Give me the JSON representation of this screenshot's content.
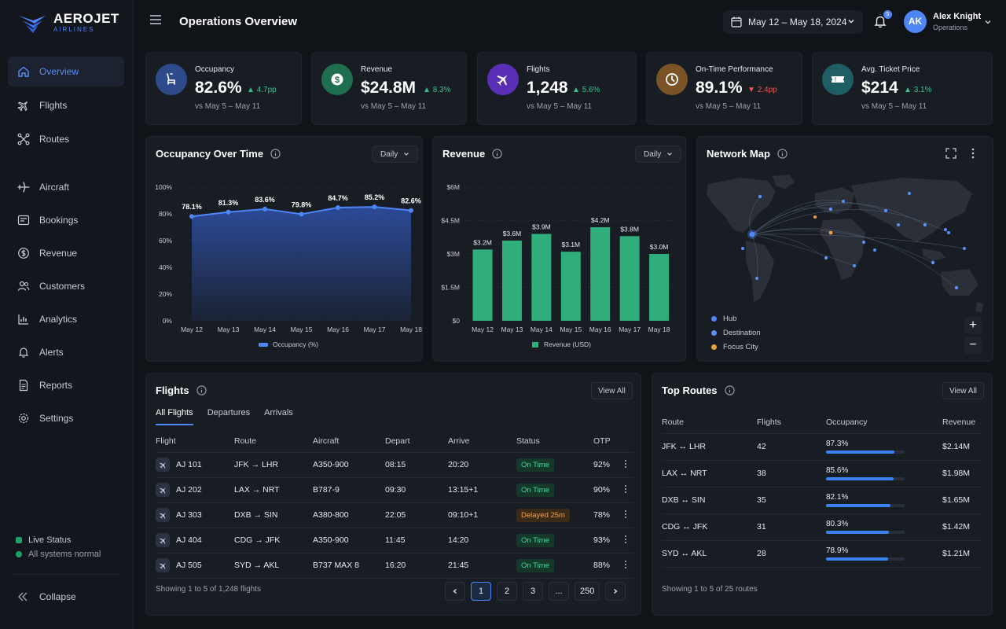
{
  "brand": {
    "name": "AEROJET",
    "sub": "AIRLINES",
    "accent": "#4f86f7"
  },
  "sidebar": {
    "items": [
      {
        "label": "Overview",
        "icon": "home-icon",
        "active": true
      },
      {
        "label": "Flights",
        "icon": "plane-icon"
      },
      {
        "label": "Routes",
        "icon": "routes-icon"
      },
      {
        "label": "Aircraft",
        "icon": "aircraft-icon"
      },
      {
        "label": "Bookings",
        "icon": "bookings-icon"
      },
      {
        "label": "Revenue",
        "icon": "dollar-circle-icon"
      },
      {
        "label": "Customers",
        "icon": "users-icon"
      },
      {
        "label": "Analytics",
        "icon": "bar-chart-icon"
      },
      {
        "label": "Alerts",
        "icon": "bell-icon"
      },
      {
        "label": "Reports",
        "icon": "document-icon"
      },
      {
        "label": "Settings",
        "icon": "gear-icon"
      }
    ],
    "status_title": "Live Status",
    "status_text": "All systems normal",
    "collapse_label": "Collapse"
  },
  "header": {
    "title": "Operations Overview",
    "date_range": "May 12 – May 18, 2024",
    "notification_count": "5",
    "user": {
      "initials": "AK",
      "name": "Alex Knight",
      "role": "Operations"
    }
  },
  "kpis": [
    {
      "label": "Occupancy",
      "value": "82.6%",
      "delta": "4.7pp",
      "trend": "up",
      "sub": "vs May 5 – May 11",
      "icon": "seat-icon",
      "color": "#2f4a8a"
    },
    {
      "label": "Revenue",
      "value": "$24.8M",
      "delta": "8.3%",
      "trend": "up",
      "sub": "vs May 5 – May 11",
      "icon": "dollar-icon",
      "color": "#1f6e4d"
    },
    {
      "label": "Flights",
      "value": "1,248",
      "delta": "5.6%",
      "trend": "up",
      "sub": "vs May 5 – May 11",
      "icon": "plane-icon",
      "color": "#5b2fb5"
    },
    {
      "label": "On-Time Performance",
      "value": "89.1%",
      "delta": "2.4pp",
      "trend": "down",
      "sub": "vs May 5 – May 11",
      "icon": "clock-icon",
      "color": "#7a5426"
    },
    {
      "label": "Avg. Ticket Price",
      "value": "$214",
      "delta": "3.1%",
      "trend": "up",
      "sub": "vs May 5 – May 11",
      "icon": "ticket-icon",
      "color": "#1f5e63"
    }
  ],
  "occupancy_card": {
    "title": "Occupancy Over Time",
    "period": "Daily"
  },
  "revenue_card": {
    "title": "Revenue",
    "period": "Daily"
  },
  "chart_data": [
    {
      "type": "area",
      "x": [
        "May 12",
        "May 13",
        "May 14",
        "May 15",
        "May 16",
        "May 17",
        "May 18"
      ],
      "series": [
        {
          "name": "Occupancy (%)",
          "values": [
            78.1,
            81.3,
            83.6,
            79.8,
            84.7,
            85.2,
            82.6
          ],
          "labels": [
            "78.1%",
            "81.3%",
            "83.6%",
            "79.8%",
            "84.7%",
            "85.2%",
            "82.6%"
          ]
        }
      ],
      "yticks": [
        "0%",
        "20%",
        "40%",
        "60%",
        "80%",
        "100%"
      ],
      "ylim": [
        0,
        100
      ],
      "legend": "bottom",
      "color": "#3b6ff5"
    },
    {
      "type": "bar",
      "categories": [
        "May 12",
        "May 13",
        "May 14",
        "May 15",
        "May 16",
        "May 17",
        "May 18"
      ],
      "series": [
        {
          "name": "Revenue (USD)",
          "values": [
            3.2,
            3.6,
            3.9,
            3.1,
            4.2,
            3.8,
            3.0
          ],
          "labels": [
            "$3.2M",
            "$3.6M",
            "$3.9M",
            "$3.1M",
            "$4.2M",
            "$3.8M",
            "$3.0M"
          ]
        }
      ],
      "yticks": [
        "$0",
        "$1.5M",
        "$3M",
        "$4.5M",
        "$6M"
      ],
      "ylim": [
        0,
        6
      ],
      "legend": "bottom",
      "color": "#2fae7c"
    }
  ],
  "network_map": {
    "title": "Network Map",
    "legend": [
      {
        "label": "Hub",
        "color": "#4f86f7"
      },
      {
        "label": "Destination",
        "color": "#5b8ff9"
      },
      {
        "label": "Focus City",
        "color": "#e8a23c"
      }
    ],
    "zoom_in": "+",
    "zoom_out": "−"
  },
  "flights_card": {
    "title": "Flights",
    "view_all": "View All",
    "tabs": [
      "All Flights",
      "Departures",
      "Arrivals"
    ],
    "columns": [
      "Flight",
      "Route",
      "Aircraft",
      "Depart",
      "Arrive",
      "Status",
      "OTP"
    ],
    "rows": [
      {
        "flight": "AJ 101",
        "route": "JFK → LHR",
        "aircraft": "A350-900",
        "depart": "08:15",
        "arrive": "20:20",
        "status": "On Time",
        "status_kind": "ok",
        "otp": "92%"
      },
      {
        "flight": "AJ 202",
        "route": "LAX → NRT",
        "aircraft": "B787-9",
        "depart": "09:30",
        "arrive": "13:15+1",
        "status": "On Time",
        "status_kind": "ok",
        "otp": "90%"
      },
      {
        "flight": "AJ 303",
        "route": "DXB → SIN",
        "aircraft": "A380-800",
        "depart": "22:05",
        "arrive": "09:10+1",
        "status": "Delayed 25m",
        "status_kind": "delay",
        "otp": "78%"
      },
      {
        "flight": "AJ 404",
        "route": "CDG → JFK",
        "aircraft": "A350-900",
        "depart": "11:45",
        "arrive": "14:20",
        "status": "On Time",
        "status_kind": "ok",
        "otp": "93%"
      },
      {
        "flight": "AJ 505",
        "route": "SYD → AKL",
        "aircraft": "B737 MAX 8",
        "depart": "16:20",
        "arrive": "21:45",
        "status": "On Time",
        "status_kind": "ok",
        "otp": "88%"
      }
    ],
    "footer": "Showing 1 to 5 of 1,248 flights",
    "pages": [
      "1",
      "2",
      "3",
      "...",
      "250"
    ],
    "current_page": "1"
  },
  "routes_card": {
    "title": "Top Routes",
    "view_all": "View All",
    "columns": [
      "Route",
      "Flights",
      "Occupancy",
      "Revenue"
    ],
    "rows": [
      {
        "route": "JFK ↔ LHR",
        "flights": "42",
        "occupancy": "87.3%",
        "occ": 0.873,
        "revenue": "$2.14M"
      },
      {
        "route": "LAX ↔ NRT",
        "flights": "38",
        "occupancy": "85.6%",
        "occ": 0.856,
        "revenue": "$1.98M"
      },
      {
        "route": "DXB ↔ SIN",
        "flights": "35",
        "occupancy": "82.1%",
        "occ": 0.821,
        "revenue": "$1.65M"
      },
      {
        "route": "CDG ↔ JFK",
        "flights": "31",
        "occupancy": "80.3%",
        "occ": 0.803,
        "revenue": "$1.42M"
      },
      {
        "route": "SYD ↔ AKL",
        "flights": "28",
        "occupancy": "78.9%",
        "occ": 0.789,
        "revenue": "$1.21M"
      }
    ],
    "footer": "Showing 1 to 5 of 25 routes"
  }
}
